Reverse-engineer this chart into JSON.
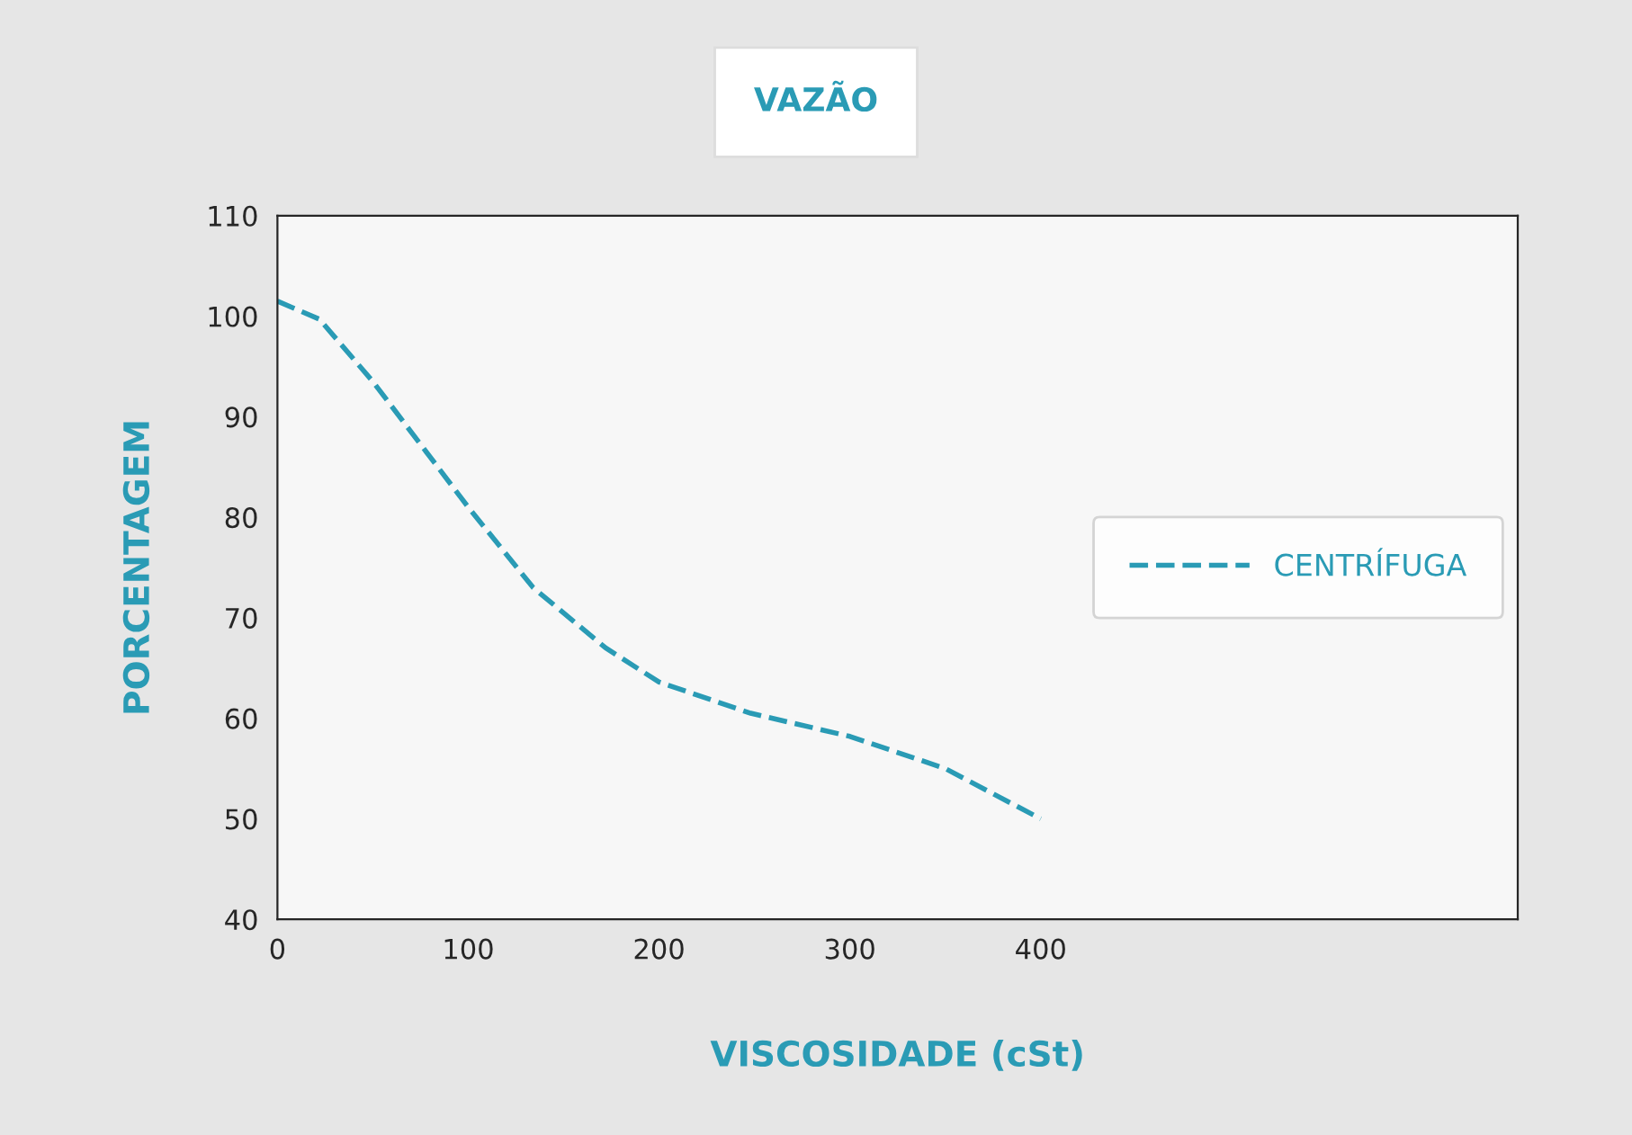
{
  "chart_data": {
    "type": "line",
    "title": "VAZÃO",
    "xlabel": "VISCOSIDADE (cSt)",
    "ylabel": "PORCENTAGEM",
    "x": [
      0,
      22,
      50,
      78,
      100,
      134,
      172,
      200,
      248,
      300,
      350,
      400
    ],
    "series": [
      {
        "name": "CENTRÍFUGA",
        "color": "#2a9bb5",
        "values": [
          101.5,
          99.7,
          93.5,
          86.5,
          81,
          73,
          67,
          63.6,
          60.5,
          58.2,
          55,
          50
        ]
      }
    ],
    "xlim": [
      0,
      650
    ],
    "xticks": [
      0,
      100,
      200,
      300,
      400
    ],
    "ylim": [
      40,
      110
    ],
    "yticks": [
      40,
      50,
      60,
      70,
      80,
      90,
      100,
      110
    ],
    "grid": false,
    "legend": "right",
    "line_style": "dashed",
    "marker": "none"
  }
}
